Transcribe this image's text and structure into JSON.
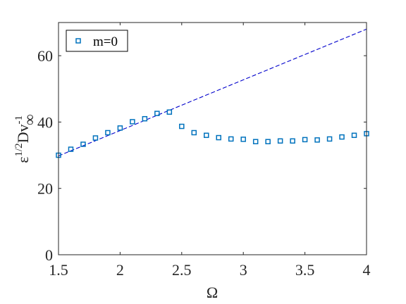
{
  "chart_data": {
    "type": "scatter",
    "title": "",
    "xlabel": "Ω",
    "ylabel": {
      "prefix": "ε",
      "prefix_sup": "1/2",
      "main": "Dv",
      "main_sup": "-1",
      "main_sub": "∞"
    },
    "xlim": [
      1.5,
      4
    ],
    "ylim": [
      0,
      70
    ],
    "xticks": [
      "1.5",
      "2",
      "2.5",
      "3",
      "3.5",
      "4"
    ],
    "yticks": [
      "0",
      "20",
      "40",
      "60"
    ],
    "grid": false,
    "legend": {
      "position": "top-left",
      "entries": [
        "m=0"
      ]
    },
    "series": [
      {
        "name": "m=0",
        "marker": "square",
        "color": "#0072BD",
        "x": [
          1.5,
          1.6,
          1.7,
          1.8,
          1.9,
          2.0,
          2.1,
          2.2,
          2.3,
          2.4,
          2.5,
          2.6,
          2.7,
          2.8,
          2.9,
          3.0,
          3.1,
          3.2,
          3.3,
          3.4,
          3.5,
          3.6,
          3.7,
          3.8,
          3.9,
          4.0
        ],
        "y": [
          30.0,
          31.8,
          33.3,
          35.2,
          36.8,
          38.2,
          40.1,
          41.0,
          42.6,
          43.0,
          38.7,
          36.8,
          36.0,
          35.3,
          34.9,
          34.8,
          34.1,
          34.1,
          34.3,
          34.3,
          34.7,
          34.6,
          34.9,
          35.5,
          36.0,
          36.5
        ]
      }
    ],
    "reference_line": {
      "style": "dashed",
      "color": "#0000CC",
      "x": [
        1.5,
        4.0
      ],
      "y": [
        29.8,
        68.0
      ]
    }
  }
}
